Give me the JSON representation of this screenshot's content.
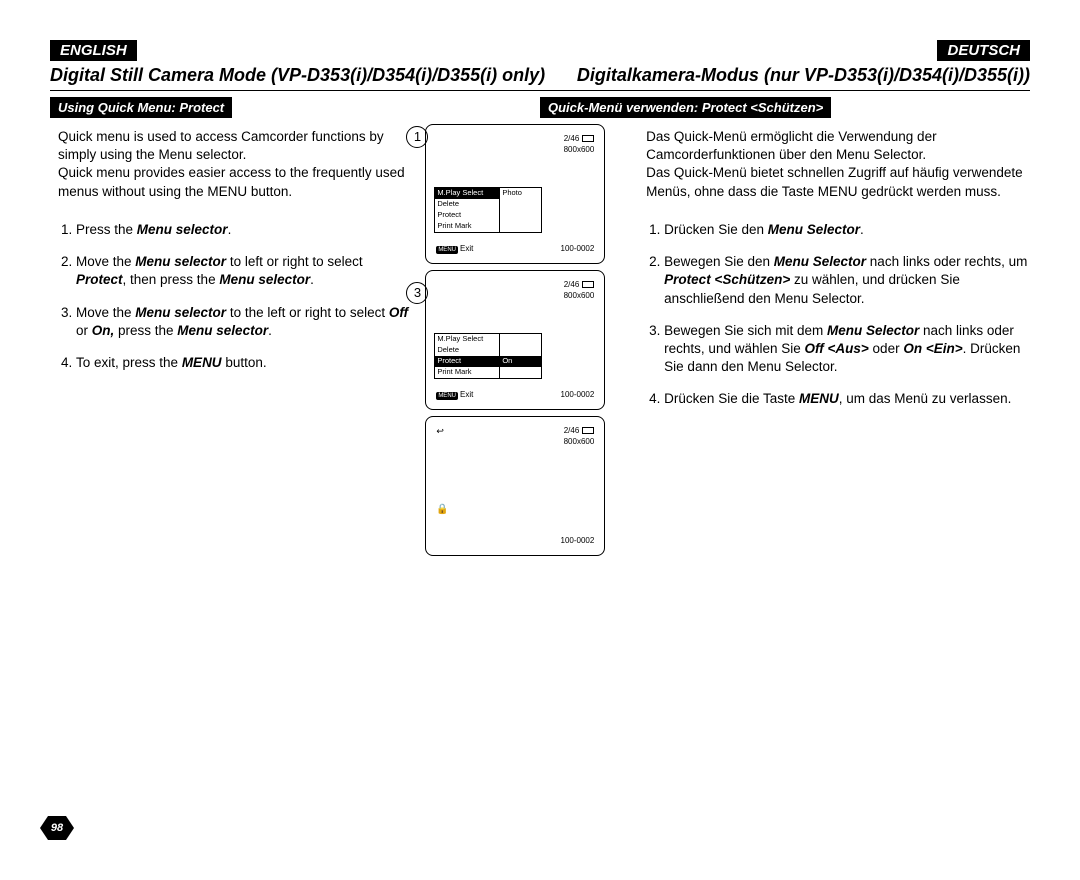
{
  "page_number": "98",
  "lang_left": "ENGLISH",
  "lang_right": "DEUTSCH",
  "title_en": "Digital Still Camera Mode (VP-D353(i)/D354(i)/D355(i) only)",
  "title_de": "Digitalkamera-Modus (nur VP-D353(i)/D354(i)/D355(i))",
  "subhead_en": "Using Quick Menu: Protect",
  "subhead_de": "Quick-Menü verwenden: Protect <Schützen>",
  "intro_en": "Quick menu is used to access Camcorder functions by simply using the Menu selector.\nQuick menu provides easier access to the frequently used menus without using the MENU button.",
  "intro_de": "Das Quick-Menü ermöglicht die Verwendung der Camcorderfunktionen über den Menu Selector.\nDas Quick-Menü bietet schnellen Zugriff auf häufig verwendete Menüs, ohne dass die Taste MENU gedrückt werden muss.",
  "steps_en": {
    "s1_a": "Press the ",
    "s1_b": "Menu selector",
    "s1_c": ".",
    "s2_a": "Move the ",
    "s2_b": "Menu selector",
    "s2_c": " to left or right to select ",
    "s2_d": "Protect",
    "s2_e": ", then press the ",
    "s2_f": "Menu selector",
    "s2_g": ".",
    "s3_a": "Move the ",
    "s3_b": "Menu selector",
    "s3_c": " to the left or right to select ",
    "s3_d": "Off",
    "s3_e": " or ",
    "s3_f": "On,",
    "s3_g": " press the ",
    "s3_h": "Menu selector",
    "s3_i": ".",
    "s4_a": "To exit, press the ",
    "s4_b": "MENU",
    "s4_c": " button."
  },
  "steps_de": {
    "s1_a": "Drücken Sie den ",
    "s1_b": "Menu Selector",
    "s1_c": ".",
    "s2_a": "Bewegen Sie den ",
    "s2_b": "Menu Selector",
    "s2_c": " nach links oder rechts, um ",
    "s2_d": "Protect <Schützen>",
    "s2_e": " zu wählen, und drücken Sie anschließend den Menu Selector.",
    "s3_a": "Bewegen Sie sich mit dem ",
    "s3_b": "Menu Selector",
    "s3_c": " nach links oder rechts, und wählen Sie ",
    "s3_d": "Off <Aus>",
    "s3_e": " oder ",
    "s3_f": "On <Ein>",
    "s3_g": ". Drücken Sie dann den Menu Selector.",
    "s4_a": "Drücken Sie die Taste ",
    "s4_b": "MENU",
    "s4_c": ", um das Menü zu verlassen."
  },
  "lcd": {
    "counter": "2/46",
    "res": "800x600",
    "file": "100-0002",
    "exit": "Exit",
    "menu_tag": "MENU",
    "menu1": {
      "rows": [
        {
          "l": "M.Play Select",
          "r": "Photo",
          "hl": "l"
        },
        {
          "l": "Delete",
          "r": "",
          "hl": ""
        },
        {
          "l": "Protect",
          "r": "",
          "hl": ""
        },
        {
          "l": "Print Mark",
          "r": "",
          "hl": ""
        }
      ]
    },
    "menu3": {
      "rows": [
        {
          "l": "M.Play Select",
          "r": "",
          "hl": ""
        },
        {
          "l": "Delete",
          "r": "",
          "hl": ""
        },
        {
          "l": "Protect",
          "r": "On",
          "hl": "both"
        },
        {
          "l": "Print Mark",
          "r": "",
          "hl": ""
        }
      ]
    }
  },
  "circles": {
    "c1": "1",
    "c3": "3"
  }
}
